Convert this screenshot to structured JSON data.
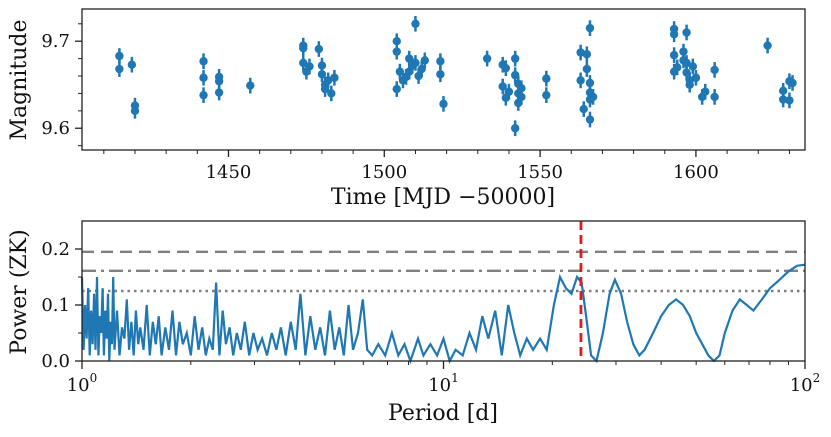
{
  "chart_data": [
    {
      "type": "scatter",
      "xlabel": "Time [MJD −50000]",
      "ylabel": "Magnitude",
      "xlim": [
        1403,
        1635
      ],
      "ylim": [
        9.575,
        9.737
      ],
      "xticks": [
        1450,
        1500,
        1550,
        1600
      ],
      "xtick_labels": [
        "1450",
        "1500",
        "1550",
        "1600"
      ],
      "yticks": [
        9.6,
        9.7
      ],
      "ytick_labels": [
        "9.6",
        "9.7"
      ],
      "yerr": 0.009,
      "color": "#1f77b4",
      "points": [
        [
          1415,
          9.683
        ],
        [
          1415,
          9.668
        ],
        [
          1419,
          9.673
        ],
        [
          1420,
          9.626
        ],
        [
          1420,
          9.62
        ],
        [
          1442,
          9.677
        ],
        [
          1442,
          9.658
        ],
        [
          1442,
          9.638
        ],
        [
          1447,
          9.659
        ],
        [
          1447,
          9.654
        ],
        [
          1447,
          9.641
        ],
        [
          1457,
          9.649
        ],
        [
          1474,
          9.695
        ],
        [
          1474,
          9.692
        ],
        [
          1474,
          9.675
        ],
        [
          1475,
          9.665
        ],
        [
          1476,
          9.671
        ],
        [
          1479,
          9.691
        ],
        [
          1480,
          9.672
        ],
        [
          1480,
          9.662
        ],
        [
          1481,
          9.65
        ],
        [
          1481,
          9.645
        ],
        [
          1482,
          9.655
        ],
        [
          1483,
          9.64
        ],
        [
          1484,
          9.658
        ],
        [
          1504,
          9.7
        ],
        [
          1504,
          9.688
        ],
        [
          1504,
          9.645
        ],
        [
          1505,
          9.665
        ],
        [
          1506,
          9.655
        ],
        [
          1507,
          9.659
        ],
        [
          1508,
          9.68
        ],
        [
          1508,
          9.665
        ],
        [
          1509,
          9.672
        ],
        [
          1510,
          9.72
        ],
        [
          1510,
          9.675
        ],
        [
          1511,
          9.66
        ],
        [
          1512,
          9.668
        ],
        [
          1513,
          9.678
        ],
        [
          1518,
          9.677
        ],
        [
          1518,
          9.662
        ],
        [
          1519,
          9.628
        ],
        [
          1533,
          9.68
        ],
        [
          1538,
          9.673
        ],
        [
          1539,
          9.669
        ],
        [
          1538,
          9.648
        ],
        [
          1539,
          9.635
        ],
        [
          1540,
          9.642
        ],
        [
          1542,
          9.68
        ],
        [
          1542,
          9.661
        ],
        [
          1543,
          9.651
        ],
        [
          1543,
          9.64
        ],
        [
          1543,
          9.629
        ],
        [
          1544,
          9.636
        ],
        [
          1544,
          9.646
        ],
        [
          1542,
          9.6
        ],
        [
          1552,
          9.657
        ],
        [
          1552,
          9.638
        ],
        [
          1563,
          9.687
        ],
        [
          1563,
          9.655
        ],
        [
          1564,
          9.622
        ],
        [
          1565,
          9.685
        ],
        [
          1565,
          9.668
        ],
        [
          1566,
          9.715
        ],
        [
          1566,
          9.652
        ],
        [
          1566,
          9.641
        ],
        [
          1566,
          9.633
        ],
        [
          1566,
          9.61
        ],
        [
          1567,
          9.636
        ],
        [
          1593,
          9.714
        ],
        [
          1593,
          9.708
        ],
        [
          1593,
          9.684
        ],
        [
          1593,
          9.665
        ],
        [
          1594,
          9.67
        ],
        [
          1596,
          9.688
        ],
        [
          1596,
          9.678
        ],
        [
          1597,
          9.71
        ],
        [
          1597,
          9.675
        ],
        [
          1597,
          9.664
        ],
        [
          1598,
          9.655
        ],
        [
          1598,
          9.65
        ],
        [
          1599,
          9.671
        ],
        [
          1600,
          9.658
        ],
        [
          1602,
          9.636
        ],
        [
          1603,
          9.642
        ],
        [
          1606,
          9.667
        ],
        [
          1606,
          9.636
        ],
        [
          1623,
          9.695
        ],
        [
          1628,
          9.633
        ],
        [
          1628,
          9.643
        ],
        [
          1630,
          9.632
        ],
        [
          1630,
          9.654
        ],
        [
          1631,
          9.652
        ]
      ]
    },
    {
      "type": "line",
      "xlabel": "Period [d]",
      "ylabel": "Power (ZK)",
      "xscale": "log",
      "xlim": [
        1,
        100
      ],
      "ylim": [
        0,
        0.25
      ],
      "xticks": [
        1,
        10,
        100
      ],
      "xtick_labels": [
        "10",
        "10",
        "10"
      ],
      "xtick_exponents": [
        "0",
        "1",
        "2"
      ],
      "yticks": [
        0,
        0.1,
        0.2
      ],
      "ytick_labels": [
        "0.0",
        "0.1",
        "0.2"
      ],
      "color": "#1f77b4",
      "reference_lines": [
        {
          "style": "dashed",
          "y": 0.195,
          "color": "#808080"
        },
        {
          "style": "dashdot",
          "y": 0.161,
          "color": "#808080"
        },
        {
          "style": "dotted",
          "y": 0.125,
          "color": "#808080"
        }
      ],
      "marked_period": {
        "x": 24,
        "color": "#e31a1c",
        "style": "dashed"
      },
      "points": [
        [
          1.0,
          0.15
        ],
        [
          1.01,
          0.02
        ],
        [
          1.02,
          0.1
        ],
        [
          1.03,
          0.04
        ],
        [
          1.04,
          0.13
        ],
        [
          1.05,
          0.01
        ],
        [
          1.06,
          0.09
        ],
        [
          1.07,
          0.03
        ],
        [
          1.08,
          0.12
        ],
        [
          1.09,
          0.02
        ],
        [
          1.1,
          0.15
        ],
        [
          1.11,
          0.01
        ],
        [
          1.12,
          0.08
        ],
        [
          1.13,
          0.05
        ],
        [
          1.14,
          0.13
        ],
        [
          1.15,
          0.01
        ],
        [
          1.16,
          0.09
        ],
        [
          1.17,
          0.04
        ],
        [
          1.18,
          0.12
        ],
        [
          1.19,
          0.0
        ],
        [
          1.2,
          0.07
        ],
        [
          1.21,
          0.03
        ],
        [
          1.22,
          0.15
        ],
        [
          1.23,
          0.02
        ],
        [
          1.25,
          0.09
        ],
        [
          1.27,
          0.01
        ],
        [
          1.29,
          0.06
        ],
        [
          1.31,
          0.04
        ],
        [
          1.33,
          0.11
        ],
        [
          1.35,
          0.02
        ],
        [
          1.37,
          0.07
        ],
        [
          1.39,
          0.01
        ],
        [
          1.41,
          0.09
        ],
        [
          1.43,
          0.03
        ],
        [
          1.45,
          0.06
        ],
        [
          1.48,
          0.02
        ],
        [
          1.51,
          0.1
        ],
        [
          1.54,
          0.01
        ],
        [
          1.57,
          0.07
        ],
        [
          1.6,
          0.03
        ],
        [
          1.63,
          0.08
        ],
        [
          1.66,
          0.01
        ],
        [
          1.7,
          0.06
        ],
        [
          1.74,
          0.02
        ],
        [
          1.78,
          0.09
        ],
        [
          1.82,
          0.01
        ],
        [
          1.86,
          0.07
        ],
        [
          1.9,
          0.03
        ],
        [
          1.95,
          0.05
        ],
        [
          2.0,
          0.01
        ],
        [
          2.05,
          0.08
        ],
        [
          2.1,
          0.02
        ],
        [
          2.15,
          0.06
        ],
        [
          2.2,
          0.01
        ],
        [
          2.25,
          0.04
        ],
        [
          2.3,
          0.02
        ],
        [
          2.35,
          0.14
        ],
        [
          2.4,
          0.01
        ],
        [
          2.45,
          0.09
        ],
        [
          2.5,
          0.03
        ],
        [
          2.56,
          0.06
        ],
        [
          2.62,
          0.01
        ],
        [
          2.68,
          0.05
        ],
        [
          2.75,
          0.02
        ],
        [
          2.82,
          0.07
        ],
        [
          2.9,
          0.01
        ],
        [
          2.98,
          0.05
        ],
        [
          3.06,
          0.02
        ],
        [
          3.15,
          0.04
        ],
        [
          3.25,
          0.01
        ],
        [
          3.35,
          0.05
        ],
        [
          3.45,
          0.02
        ],
        [
          3.55,
          0.06
        ],
        [
          3.66,
          0.01
        ],
        [
          3.78,
          0.07
        ],
        [
          3.9,
          0.02
        ],
        [
          4.02,
          0.12
        ],
        [
          4.15,
          0.01
        ],
        [
          4.28,
          0.08
        ],
        [
          4.42,
          0.02
        ],
        [
          4.56,
          0.06
        ],
        [
          4.7,
          0.01
        ],
        [
          4.85,
          0.09
        ],
        [
          5.0,
          0.02
        ],
        [
          5.15,
          0.06
        ],
        [
          5.3,
          0.01
        ],
        [
          5.46,
          0.1
        ],
        [
          5.62,
          0.02
        ],
        [
          5.8,
          0.05
        ],
        [
          5.98,
          0.11
        ],
        [
          6.15,
          0.02
        ],
        [
          6.35,
          0.01
        ],
        [
          6.6,
          0.03
        ],
        [
          6.9,
          0.01
        ],
        [
          7.2,
          0.05
        ],
        [
          7.5,
          0.01
        ],
        [
          7.8,
          0.03
        ],
        [
          8.1,
          0.0
        ],
        [
          8.5,
          0.04
        ],
        [
          8.8,
          0.01
        ],
        [
          9.2,
          0.03
        ],
        [
          9.6,
          0.01
        ],
        [
          10.0,
          0.04
        ],
        [
          10.4,
          0.0
        ],
        [
          10.8,
          0.02
        ],
        [
          11.3,
          0.01
        ],
        [
          11.8,
          0.05
        ],
        [
          12.3,
          0.02
        ],
        [
          12.8,
          0.08
        ],
        [
          13.3,
          0.04
        ],
        [
          13.9,
          0.09
        ],
        [
          14.5,
          0.01
        ],
        [
          15.1,
          0.1
        ],
        [
          15.7,
          0.05
        ],
        [
          16.3,
          0.01
        ],
        [
          17.0,
          0.04
        ],
        [
          17.7,
          0.02
        ],
        [
          18.5,
          0.04
        ],
        [
          19.3,
          0.02
        ],
        [
          20.2,
          0.1
        ],
        [
          21.0,
          0.15
        ],
        [
          21.8,
          0.13
        ],
        [
          22.6,
          0.12
        ],
        [
          23.4,
          0.15
        ],
        [
          24.1,
          0.14
        ],
        [
          24.8,
          0.08
        ],
        [
          25.6,
          0.01
        ],
        [
          26.5,
          0.0
        ],
        [
          27.6,
          0.05
        ],
        [
          28.8,
          0.12
        ],
        [
          29.8,
          0.145
        ],
        [
          31.0,
          0.12
        ],
        [
          32.2,
          0.07
        ],
        [
          33.5,
          0.03
        ],
        [
          34.8,
          0.01
        ],
        [
          36.0,
          0.02
        ],
        [
          38.0,
          0.05
        ],
        [
          40.0,
          0.08
        ],
        [
          42.0,
          0.1
        ],
        [
          44.0,
          0.11
        ],
        [
          46.0,
          0.1
        ],
        [
          48.0,
          0.08
        ],
        [
          50.0,
          0.05
        ],
        [
          52.0,
          0.03
        ],
        [
          54.0,
          0.01
        ],
        [
          56.0,
          0.0
        ],
        [
          58.0,
          0.01
        ],
        [
          60.0,
          0.05
        ],
        [
          63.0,
          0.09
        ],
        [
          66.0,
          0.11
        ],
        [
          69.0,
          0.1
        ],
        [
          72.0,
          0.09
        ],
        [
          76.0,
          0.11
        ],
        [
          80.0,
          0.13
        ],
        [
          85.0,
          0.145
        ],
        [
          90.0,
          0.16
        ],
        [
          95.0,
          0.17
        ],
        [
          100.0,
          0.172
        ]
      ]
    }
  ]
}
